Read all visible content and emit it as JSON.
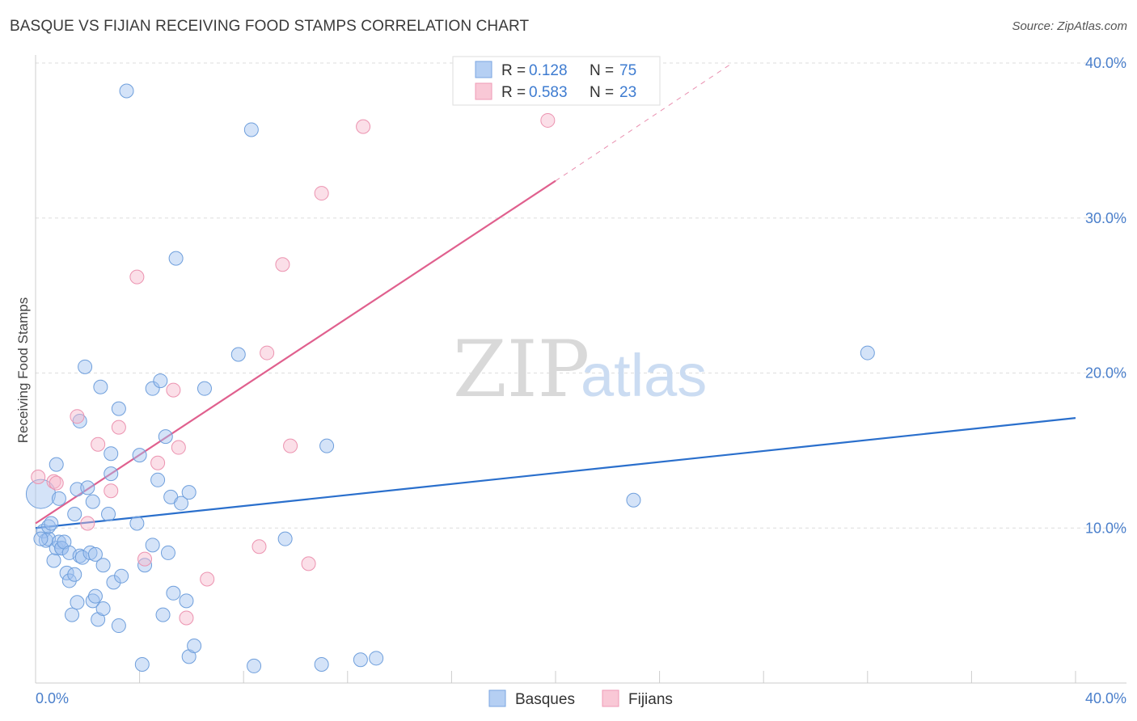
{
  "header": {
    "title": "BASQUE VS FIJIAN RECEIVING FOOD STAMPS CORRELATION CHART",
    "source": "Source: ZipAtlas.com"
  },
  "watermark": {
    "part1": "ZIP",
    "part2": "atlas"
  },
  "legend": {
    "r_label": "R =",
    "n_label": "N =",
    "rows": [
      {
        "r": "0.128",
        "n": "75",
        "fill": "#b5cff3",
        "stroke": "#7aa6e0"
      },
      {
        "r": "0.583",
        "n": "23",
        "fill": "#f9c8d6",
        "stroke": "#ef9ab5"
      }
    ]
  },
  "bottom_legend": [
    {
      "label": "Basques",
      "fill": "#b5cff3",
      "stroke": "#7aa6e0"
    },
    {
      "label": "Fijians",
      "fill": "#f9c8d6",
      "stroke": "#ef9ab5"
    }
  ],
  "colors": {
    "blue_point_fill": "rgba(159,194,240,0.45)",
    "blue_point_stroke": "#6f9fdc",
    "pink_point_fill": "rgba(247,183,203,0.45)",
    "pink_point_stroke": "#ec93b0",
    "blue_line": "#2a6fcc",
    "pink_line": "#e0608e",
    "axis_text": "#4a7fcb",
    "grid": "#dddddd"
  },
  "chart_data": {
    "type": "scatter",
    "title": "BASQUE VS FIJIAN RECEIVING FOOD STAMPS CORRELATION CHART",
    "xlabel": "",
    "ylabel": "Receiving Food Stamps",
    "xlim": [
      0,
      40
    ],
    "ylim": [
      0,
      40
    ],
    "x_tick_labels": [
      "0.0%",
      "40.0%"
    ],
    "y_ticks": [
      10,
      20,
      30,
      40
    ],
    "y_tick_labels": [
      "10.0%",
      "20.0%",
      "30.0%",
      "40.0%"
    ],
    "series": [
      {
        "name": "Basques",
        "r": 0.128,
        "n": 75,
        "trend": {
          "x": [
            0,
            40
          ],
          "y": [
            10.0,
            17.1
          ]
        },
        "points": [
          [
            0.2,
            12.2
          ],
          [
            0.3,
            9.8
          ],
          [
            0.4,
            9.2
          ],
          [
            0.5,
            9.3
          ],
          [
            0.5,
            10.1
          ],
          [
            0.6,
            10.3
          ],
          [
            0.7,
            7.9
          ],
          [
            0.8,
            8.7
          ],
          [
            0.8,
            14.1
          ],
          [
            0.9,
            11.9
          ],
          [
            0.9,
            9.1
          ],
          [
            1.0,
            8.7
          ],
          [
            1.0,
            8.7
          ],
          [
            1.1,
            9.1
          ],
          [
            1.2,
            7.1
          ],
          [
            1.3,
            6.6
          ],
          [
            1.3,
            8.4
          ],
          [
            1.4,
            4.4
          ],
          [
            1.5,
            7.0
          ],
          [
            1.5,
            10.9
          ],
          [
            1.6,
            5.2
          ],
          [
            1.6,
            12.5
          ],
          [
            1.7,
            16.9
          ],
          [
            1.7,
            8.2
          ],
          [
            1.8,
            8.1
          ],
          [
            1.9,
            20.4
          ],
          [
            2.0,
            12.6
          ],
          [
            2.1,
            8.4
          ],
          [
            2.2,
            11.7
          ],
          [
            2.2,
            5.3
          ],
          [
            2.3,
            8.3
          ],
          [
            2.3,
            5.6
          ],
          [
            2.4,
            4.1
          ],
          [
            2.5,
            19.1
          ],
          [
            2.6,
            4.8
          ],
          [
            2.6,
            7.6
          ],
          [
            2.8,
            10.9
          ],
          [
            2.9,
            13.5
          ],
          [
            2.9,
            14.8
          ],
          [
            3.0,
            6.5
          ],
          [
            3.2,
            17.7
          ],
          [
            3.2,
            3.7
          ],
          [
            3.3,
            6.9
          ],
          [
            3.5,
            38.2
          ],
          [
            3.9,
            10.3
          ],
          [
            4.0,
            14.7
          ],
          [
            4.1,
            1.2
          ],
          [
            4.2,
            7.6
          ],
          [
            4.5,
            8.9
          ],
          [
            4.5,
            19.0
          ],
          [
            4.7,
            13.1
          ],
          [
            4.8,
            19.5
          ],
          [
            4.9,
            4.4
          ],
          [
            5.0,
            15.9
          ],
          [
            5.1,
            8.4
          ],
          [
            5.2,
            12.0
          ],
          [
            5.3,
            5.8
          ],
          [
            5.4,
            27.4
          ],
          [
            5.6,
            11.6
          ],
          [
            5.8,
            5.3
          ],
          [
            5.9,
            1.7
          ],
          [
            5.9,
            12.3
          ],
          [
            6.1,
            2.4
          ],
          [
            6.5,
            19.0
          ],
          [
            7.8,
            21.2
          ],
          [
            8.3,
            35.7
          ],
          [
            8.4,
            1.1
          ],
          [
            9.6,
            9.3
          ],
          [
            11.0,
            1.2
          ],
          [
            11.2,
            15.3
          ],
          [
            12.5,
            1.5
          ],
          [
            13.1,
            1.6
          ],
          [
            23.0,
            11.8
          ],
          [
            32.0,
            21.3
          ],
          [
            0.2,
            9.3
          ]
        ]
      },
      {
        "name": "Fijians",
        "r": 0.583,
        "n": 23,
        "trend": {
          "x": [
            0,
            20
          ],
          "y": [
            10.3,
            32.4
          ]
        },
        "trend_dashed": {
          "x": [
            20,
            26.8
          ],
          "y": [
            32.4,
            40.0
          ]
        },
        "points": [
          [
            0.1,
            13.3
          ],
          [
            0.7,
            13.0
          ],
          [
            0.8,
            12.9
          ],
          [
            1.6,
            17.2
          ],
          [
            2.0,
            10.3
          ],
          [
            2.4,
            15.4
          ],
          [
            2.9,
            12.4
          ],
          [
            3.2,
            16.5
          ],
          [
            3.9,
            26.2
          ],
          [
            4.2,
            8.0
          ],
          [
            4.7,
            14.2
          ],
          [
            5.3,
            18.9
          ],
          [
            5.5,
            15.2
          ],
          [
            5.8,
            4.2
          ],
          [
            6.6,
            6.7
          ],
          [
            8.6,
            8.8
          ],
          [
            8.9,
            21.3
          ],
          [
            9.5,
            27.0
          ],
          [
            9.8,
            15.3
          ],
          [
            10.5,
            7.7
          ],
          [
            11.0,
            31.6
          ],
          [
            12.6,
            35.9
          ],
          [
            19.7,
            36.3
          ]
        ]
      }
    ]
  }
}
